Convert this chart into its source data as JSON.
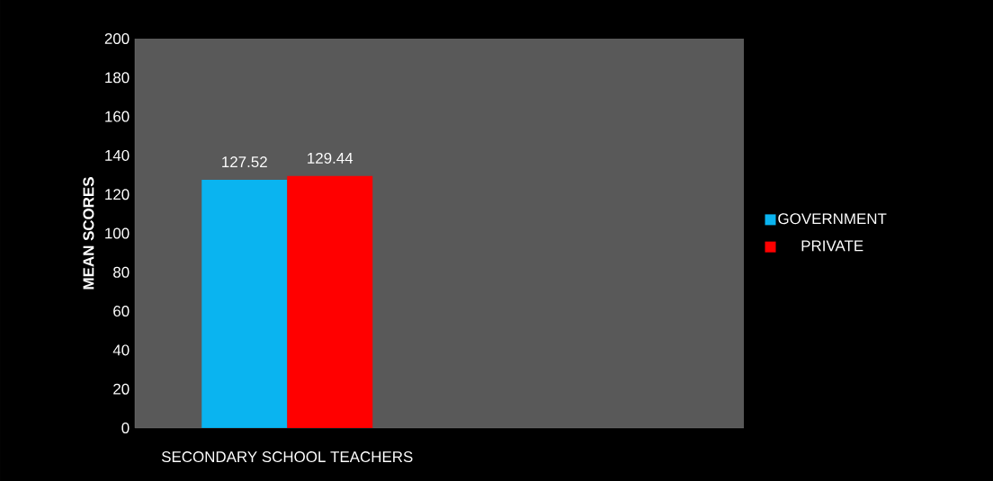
{
  "chart_data": {
    "type": "bar",
    "ylabel": "MEAN SCORES",
    "categories": [
      "SECONDARY SCHOOL TEACHERS",
      null
    ],
    "series": [
      {
        "name": "GOVERNMENT",
        "color": "#0ab4f0",
        "values": [
          127.52,
          null
        ]
      },
      {
        "name": "PRIVATE",
        "color": "#ff0000",
        "values": [
          129.44,
          null
        ]
      }
    ],
    "ylim": [
      0,
      200
    ],
    "yticks": [
      0,
      20,
      40,
      60,
      80,
      100,
      120,
      140,
      160,
      180,
      200
    ],
    "data_labels": true,
    "legend": "right",
    "grid": false
  }
}
